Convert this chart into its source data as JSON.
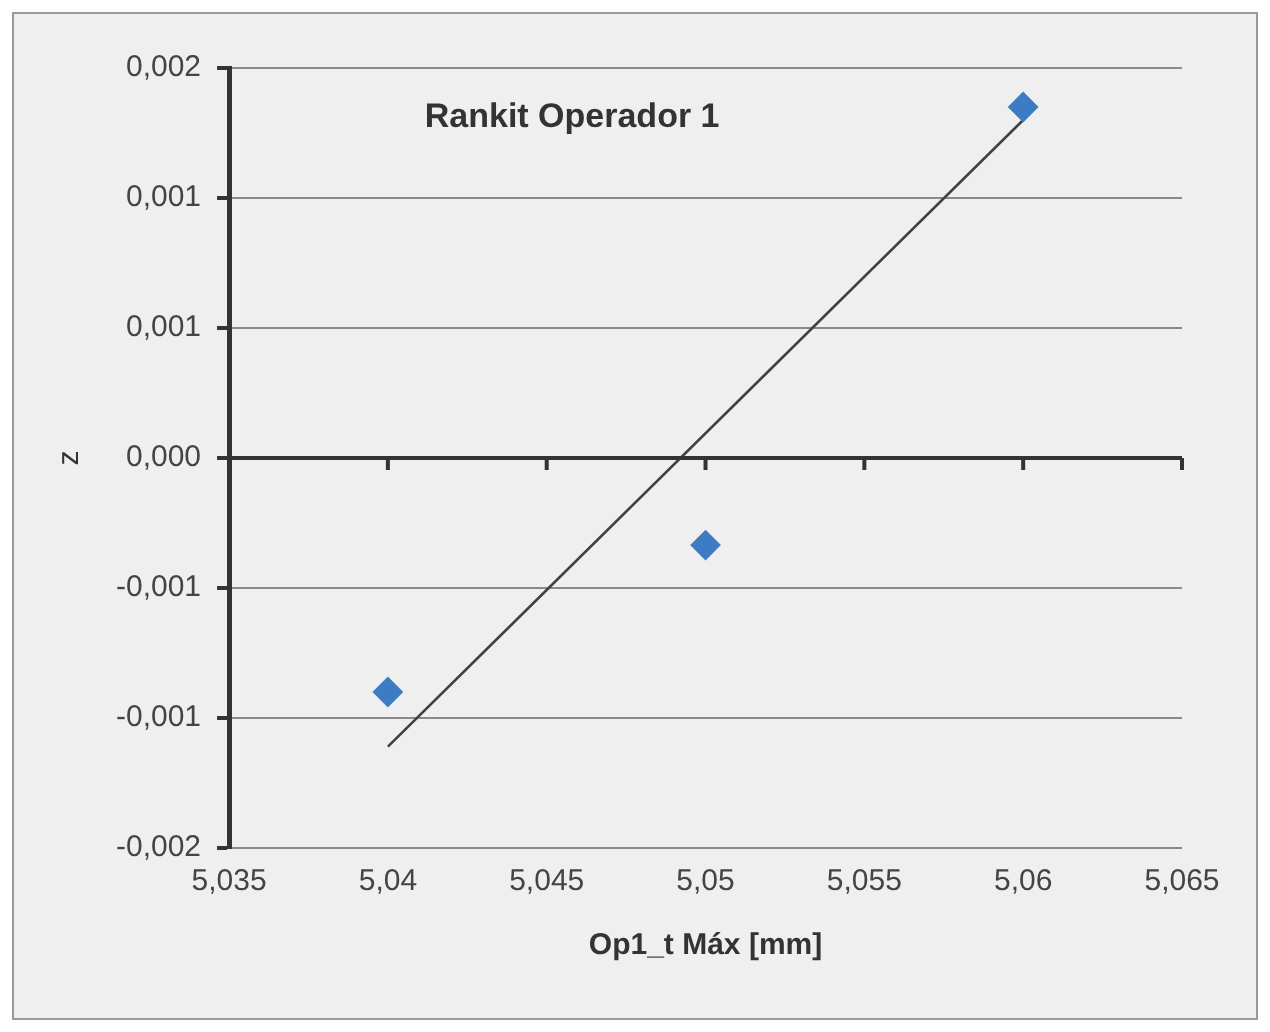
{
  "chart_data": {
    "type": "scatter",
    "title": "Rankit Operador 1",
    "xlabel": "Op1_t Máx [mm]",
    "ylabel": "z",
    "series": [
      {
        "marker": "diamond",
        "color": "#3d7cc4",
        "x": [
          5.04,
          5.05,
          5.06
        ],
        "values": [
          -0.0009,
          -0.000335,
          0.00135
        ]
      },
      {
        "type": "line",
        "marker": "none",
        "color": "#404040",
        "x": [
          5.04,
          5.06
        ],
        "values": [
          -0.00111,
          0.0013
        ]
      }
    ],
    "xlim": [
      5.035,
      5.065
    ],
    "xticks": [
      {
        "value": 5.035,
        "label": "5,035"
      },
      {
        "value": 5.04,
        "label": "5,04"
      },
      {
        "value": 5.045,
        "label": "5,045"
      },
      {
        "value": 5.05,
        "label": "5,05"
      },
      {
        "value": 5.055,
        "label": "5,055"
      },
      {
        "value": 5.06,
        "label": "5,06"
      },
      {
        "value": 5.065,
        "label": "5,065"
      }
    ],
    "ylim": [
      -0.0015,
      0.0015
    ],
    "yticks": [
      {
        "value": -0.0015,
        "label": "-0,002"
      },
      {
        "value": -0.001,
        "label": "-0,001"
      },
      {
        "value": -0.0005,
        "label": "-0,001"
      },
      {
        "value": 0,
        "label": "0,000"
      },
      {
        "value": 0.0005,
        "label": "0,001"
      },
      {
        "value": 0.001,
        "label": "0,001"
      },
      {
        "value": 0.0015,
        "label": "0,002"
      }
    ],
    "grid": "y",
    "legend": false
  }
}
